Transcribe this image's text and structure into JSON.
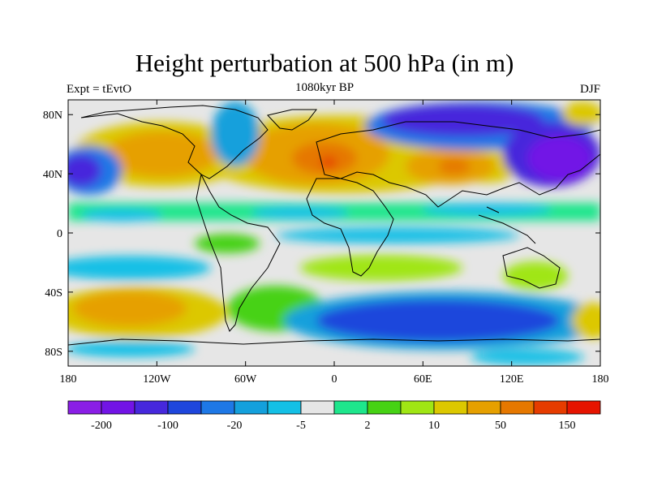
{
  "title": "Height perturbation at 500 hPa (in m)",
  "left_label": "Expt = tEvtO",
  "center_label": "1080kyr BP",
  "right_label": "DJF",
  "map": {
    "projection": "cylindrical equidistant",
    "lon_range": [
      -180,
      180
    ],
    "lat_range": [
      -90,
      90
    ],
    "lat_ticks": [
      {
        "value": 80,
        "label": "80N"
      },
      {
        "value": 40,
        "label": "40N"
      },
      {
        "value": 0,
        "label": "0"
      },
      {
        "value": -40,
        "label": "40S"
      },
      {
        "value": -80,
        "label": "80S"
      }
    ],
    "lon_ticks": [
      {
        "value": -180,
        "label": "180"
      },
      {
        "value": -120,
        "label": "120W"
      },
      {
        "value": -60,
        "label": "60W"
      },
      {
        "value": 0,
        "label": "0"
      },
      {
        "value": 60,
        "label": "60E"
      },
      {
        "value": 120,
        "label": "120E"
      },
      {
        "value": 180,
        "label": "180"
      }
    ]
  },
  "colorbar": {
    "colors": [
      "#8a1ee6",
      "#7214e6",
      "#4628dc",
      "#1e46dc",
      "#1e78e6",
      "#14a0dc",
      "#14c0e6",
      "#e6e6e6",
      "#1ee68c",
      "#46d214",
      "#a0e614",
      "#dcc800",
      "#e6a000",
      "#e67800",
      "#e63c00",
      "#e61400"
    ],
    "labels": [
      {
        "text": "-200",
        "boundary": 1
      },
      {
        "text": "-100",
        "boundary": 3
      },
      {
        "text": "-20",
        "boundary": 5
      },
      {
        "text": "-5",
        "boundary": 7
      },
      {
        "text": "2",
        "boundary": 9
      },
      {
        "text": "10",
        "boundary": 11
      },
      {
        "text": "50",
        "boundary": 13
      },
      {
        "text": "150",
        "boundary": 15
      }
    ]
  }
}
